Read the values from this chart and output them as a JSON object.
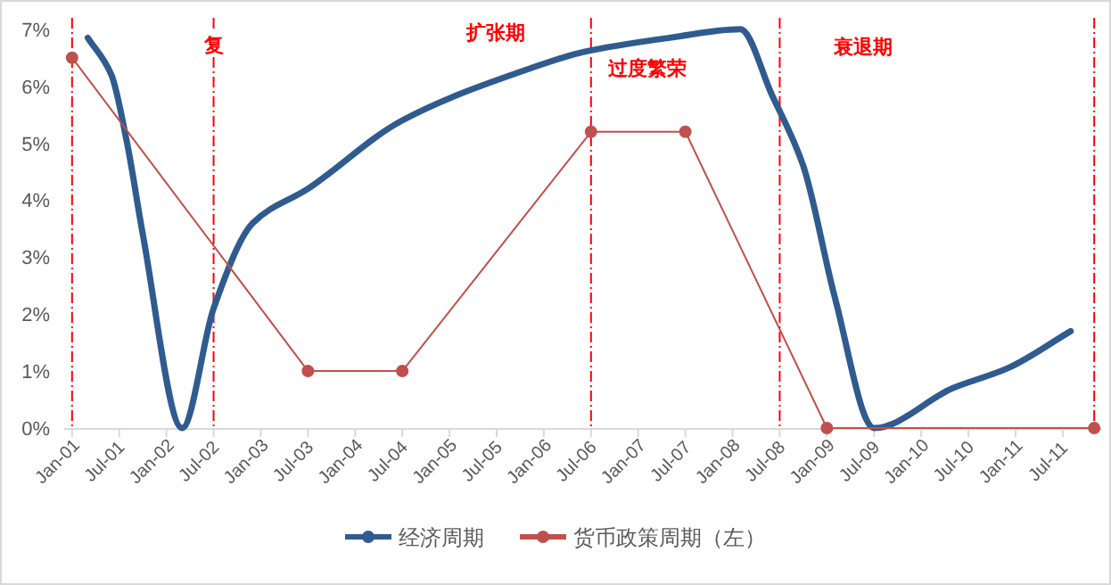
{
  "chart_data": {
    "type": "line",
    "xlim": [
      "2000-12",
      "2011-12"
    ],
    "xticks": [
      {
        "value": "2001-01",
        "label": "Jan-01"
      },
      {
        "value": "2001-07",
        "label": "Jul-01"
      },
      {
        "value": "2002-01",
        "label": "Jan-02"
      },
      {
        "value": "2002-07",
        "label": "Jul-02"
      },
      {
        "value": "2003-01",
        "label": "Jan-03"
      },
      {
        "value": "2003-07",
        "label": "Jul-03"
      },
      {
        "value": "2004-01",
        "label": "Jan-04"
      },
      {
        "value": "2004-07",
        "label": "Jul-04"
      },
      {
        "value": "2005-01",
        "label": "Jan-05"
      },
      {
        "value": "2005-07",
        "label": "Jul-05"
      },
      {
        "value": "2006-01",
        "label": "Jan-06"
      },
      {
        "value": "2006-07",
        "label": "Jul-06"
      },
      {
        "value": "2007-01",
        "label": "Jan-07"
      },
      {
        "value": "2007-07",
        "label": "Jul-07"
      },
      {
        "value": "2008-01",
        "label": "Jan-08"
      },
      {
        "value": "2008-07",
        "label": "Jul-08"
      },
      {
        "value": "2009-01",
        "label": "Jan-09"
      },
      {
        "value": "2009-07",
        "label": "Jul-09"
      },
      {
        "value": "2010-01",
        "label": "Jan-10"
      },
      {
        "value": "2010-07",
        "label": "Jul-10"
      },
      {
        "value": "2011-01",
        "label": "Jan-11"
      },
      {
        "value": "2011-07",
        "label": "Jul-11"
      }
    ],
    "ylim": [
      0,
      7.2
    ],
    "yticks": [
      {
        "value": 0,
        "label": "0%"
      },
      {
        "value": 1,
        "label": "1%"
      },
      {
        "value": 2,
        "label": "2%"
      },
      {
        "value": 3,
        "label": "3%"
      },
      {
        "value": 4,
        "label": "4%"
      },
      {
        "value": 5,
        "label": "5%"
      },
      {
        "value": 6,
        "label": "6%"
      },
      {
        "value": 7,
        "label": "7%"
      }
    ],
    "series": [
      {
        "name": "经济周期",
        "color": "#2f5b8f",
        "marker": "none",
        "x": [
          "2001-03",
          "2001-06",
          "2001-08",
          "2001-10",
          "2002-03",
          "2002-07",
          "2002-12",
          "2003-07",
          "2004-07",
          "2005-11",
          "2006-06",
          "2007-05",
          "2008-02",
          "2008-06",
          "2008-10",
          "2009-02",
          "2009-07",
          "2010-05",
          "2010-12",
          "2011-08"
        ],
        "values": [
          6.85,
          6.2,
          5.0,
          3.4,
          0,
          2.1,
          3.6,
          4.2,
          5.4,
          6.3,
          6.6,
          6.85,
          7.0,
          5.85,
          4.6,
          2.3,
          0,
          0.7,
          1.05,
          1.7
        ]
      },
      {
        "name": "货币政策周期（左）",
        "color": "#c0504d",
        "marker": "circle",
        "x": [
          "2001-01",
          "2003-07",
          "2004-07",
          "2006-07",
          "2007-07",
          "2009-01",
          "2011-11"
        ],
        "values": [
          6.5,
          1.0,
          1.0,
          5.2,
          5.2,
          0,
          0
        ]
      }
    ],
    "ref_lines": [
      {
        "axis": "x",
        "value": "2001-01",
        "color": "#ff0000",
        "line_style": "dashed"
      },
      {
        "axis": "x",
        "value": "2002-07",
        "color": "#ff0000",
        "line_style": "dashed",
        "label": "复"
      },
      {
        "axis": "x",
        "value": "2006-07",
        "color": "#ff0000",
        "line_style": "dashed"
      },
      {
        "axis": "x",
        "value": "2008-07",
        "color": "#ff0000",
        "line_style": "dashed"
      },
      {
        "axis": "x",
        "value": "2011-11",
        "color": "#ff0000",
        "line_style": "dashed"
      }
    ],
    "annotations": [
      "扩张期",
      "过度繁荣",
      "衰退期"
    ],
    "grid": false,
    "legend": "bottom"
  }
}
